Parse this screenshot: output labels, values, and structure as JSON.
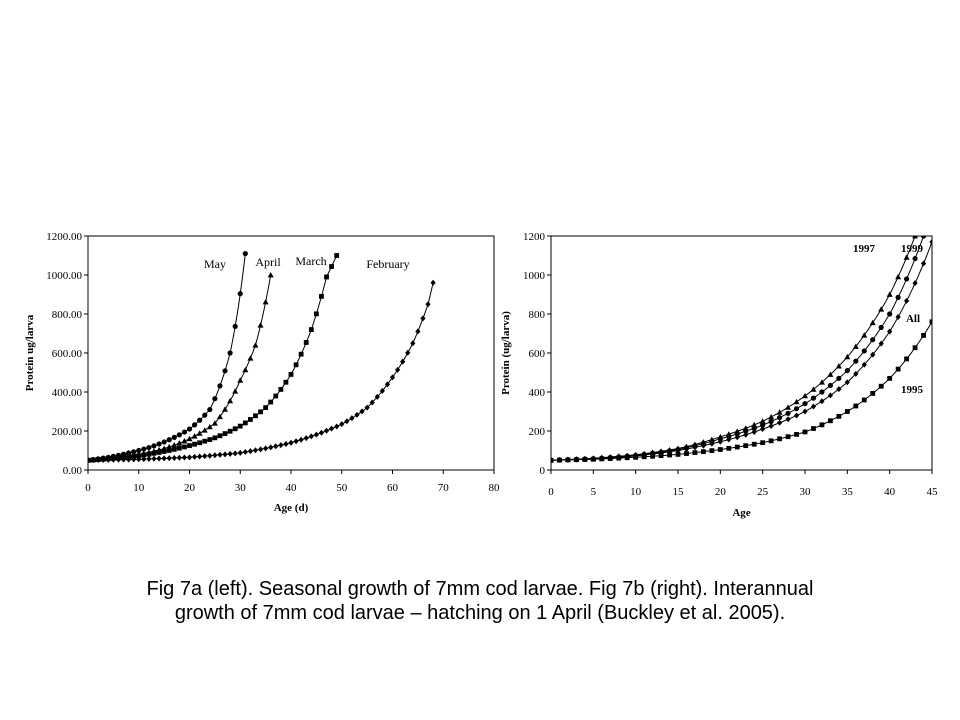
{
  "caption": {
    "line1": "Fig 7a (left). Seasonal growth of 7mm cod larvae. Fig 7b (right). Interannual",
    "line2": "growth of 7mm cod larvae – hatching on 1 April (Buckley et al. 2005)."
  },
  "chart_data": [
    {
      "type": "line",
      "title": "",
      "xlabel": "Age (d)",
      "ylabel": "Protein ug/larva",
      "xlim": [
        0,
        80
      ],
      "ylim": [
        0,
        1200
      ],
      "x_ticks": [
        "0",
        "10",
        "20",
        "30",
        "40",
        "50",
        "60",
        "70",
        "80"
      ],
      "y_ticks": [
        "0.00",
        "200.00",
        "400.00",
        "600.00",
        "800.00",
        "1000.00",
        "1200.00"
      ],
      "grid": false,
      "legend": "inline labels above curves",
      "series": [
        {
          "name": "May",
          "marker": "circle",
          "values": [
            [
              0,
              50
            ],
            [
              4,
              65
            ],
            [
              8,
              87
            ],
            [
              12,
              115
            ],
            [
              16,
              155
            ],
            [
              20,
              210
            ],
            [
              24,
              310
            ],
            [
              28,
              600
            ],
            [
              31,
              1110
            ]
          ]
        },
        {
          "name": "April",
          "marker": "triangle",
          "values": [
            [
              0,
              50
            ],
            [
              5,
              62
            ],
            [
              10,
              80
            ],
            [
              15,
              110
            ],
            [
              20,
              160
            ],
            [
              25,
              240
            ],
            [
              30,
              460
            ],
            [
              33,
              640
            ],
            [
              36,
              1000
            ]
          ]
        },
        {
          "name": "March",
          "marker": "square",
          "values": [
            [
              0,
              50
            ],
            [
              5,
              60
            ],
            [
              10,
              73
            ],
            [
              15,
              95
            ],
            [
              20,
              125
            ],
            [
              25,
              165
            ],
            [
              30,
              225
            ],
            [
              35,
              320
            ],
            [
              40,
              490
            ],
            [
              44,
              720
            ],
            [
              47,
              990
            ],
            [
              49,
              1100
            ]
          ]
        },
        {
          "name": "February",
          "marker": "diamond",
          "values": [
            [
              0,
              50
            ],
            [
              10,
              55
            ],
            [
              20,
              65
            ],
            [
              30,
              88
            ],
            [
              40,
              140
            ],
            [
              50,
              235
            ],
            [
              55,
              320
            ],
            [
              60,
              475
            ],
            [
              64,
              650
            ],
            [
              67,
              850
            ],
            [
              68,
              960
            ]
          ]
        }
      ]
    },
    {
      "type": "line",
      "title": "",
      "xlabel": "Age",
      "ylabel": "Protein (ug/larva)",
      "xlim": [
        0,
        45
      ],
      "ylim": [
        0,
        1200
      ],
      "x_ticks": [
        "0",
        "5",
        "10",
        "15",
        "20",
        "25",
        "30",
        "35",
        "40",
        "45"
      ],
      "y_ticks": [
        "0",
        "200",
        "400",
        "600",
        "800",
        "1000",
        "1200"
      ],
      "grid": false,
      "legend": "inline labels beside curves",
      "series": [
        {
          "name": "1997",
          "marker": "triangle",
          "values": [
            [
              0,
              50
            ],
            [
              5,
              60
            ],
            [
              10,
              78
            ],
            [
              15,
              110
            ],
            [
              20,
              170
            ],
            [
              25,
              250
            ],
            [
              30,
              380
            ],
            [
              35,
              580
            ],
            [
              40,
              900
            ],
            [
              43,
              1200
            ]
          ]
        },
        {
          "name": "1999",
          "marker": "circle",
          "values": [
            [
              0,
              50
            ],
            [
              5,
              58
            ],
            [
              10,
              75
            ],
            [
              15,
              105
            ],
            [
              20,
              160
            ],
            [
              25,
              230
            ],
            [
              30,
              340
            ],
            [
              35,
              510
            ],
            [
              40,
              800
            ],
            [
              44,
              1200
            ]
          ]
        },
        {
          "name": "All",
          "marker": "diamond",
          "values": [
            [
              0,
              50
            ],
            [
              5,
              57
            ],
            [
              10,
              72
            ],
            [
              15,
              100
            ],
            [
              20,
              145
            ],
            [
              25,
              210
            ],
            [
              30,
              300
            ],
            [
              35,
              450
            ],
            [
              40,
              710
            ],
            [
              45,
              1170
            ]
          ]
        },
        {
          "name": "1995",
          "marker": "square",
          "values": [
            [
              0,
              50
            ],
            [
              5,
              55
            ],
            [
              10,
              65
            ],
            [
              15,
              80
            ],
            [
              20,
              105
            ],
            [
              25,
              140
            ],
            [
              30,
              195
            ],
            [
              35,
              300
            ],
            [
              40,
              470
            ],
            [
              45,
              760
            ]
          ]
        }
      ]
    }
  ]
}
